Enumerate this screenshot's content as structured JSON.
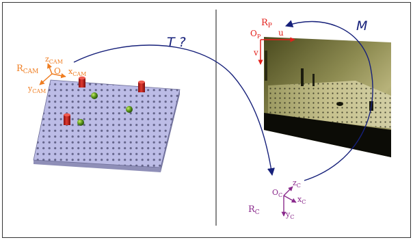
{
  "colors": {
    "cam": "#ef7d21",
    "proj": "#e3201b",
    "calib": "#8a2a8c",
    "arrow": "#16207a",
    "plate": "#b9b9e6",
    "plate_side": "#8f8fb8"
  },
  "left": {
    "frame": {
      "name": "R",
      "sub": "CAM"
    },
    "origin": "O",
    "z": {
      "name": "z",
      "sub": "CAM"
    },
    "x": {
      "name": "x",
      "sub": "CAM"
    },
    "y": {
      "name": "y",
      "sub": "CAM"
    }
  },
  "transform_T": "T ?",
  "transform_M": "M",
  "right": {
    "frame": {
      "name": "R",
      "sub": "P"
    },
    "origin": {
      "name": "O",
      "sub": "P"
    },
    "u": "u",
    "v": "v"
  },
  "calib": {
    "frame": {
      "name": "R",
      "sub": "C"
    },
    "origin": {
      "name": "O",
      "sub": "C"
    },
    "z": {
      "name": "z",
      "sub": "C"
    },
    "x": {
      "name": "x",
      "sub": "C"
    },
    "y": {
      "name": "y",
      "sub": "C"
    }
  },
  "icons": [
    "cylinder-peg-icon",
    "sphere-icon",
    "perforated-plate",
    "camera-photo"
  ]
}
